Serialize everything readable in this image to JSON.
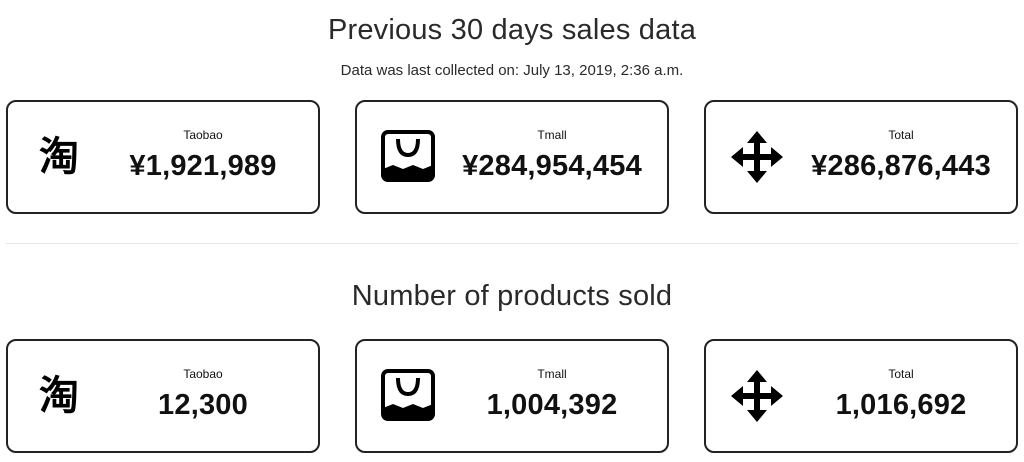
{
  "sales": {
    "title": "Previous 30 days sales data",
    "subtitle": "Data was last collected on: July 13, 2019, 2:36 a.m.",
    "cards": [
      {
        "label": "Taobao",
        "value": "¥1,921,989",
        "icon": "taobao-icon"
      },
      {
        "label": "Tmall",
        "value": "¥284,954,454",
        "icon": "tmall-icon"
      },
      {
        "label": "Total",
        "value": "¥286,876,443",
        "icon": "arrows-move-icon"
      }
    ]
  },
  "products": {
    "title": "Number of products sold",
    "cards": [
      {
        "label": "Taobao",
        "value": "12,300",
        "icon": "taobao-icon"
      },
      {
        "label": "Tmall",
        "value": "1,004,392",
        "icon": "tmall-icon"
      },
      {
        "label": "Total",
        "value": "1,016,692",
        "icon": "arrows-move-icon"
      }
    ]
  },
  "icons": {
    "taobao_glyph": "淘"
  }
}
